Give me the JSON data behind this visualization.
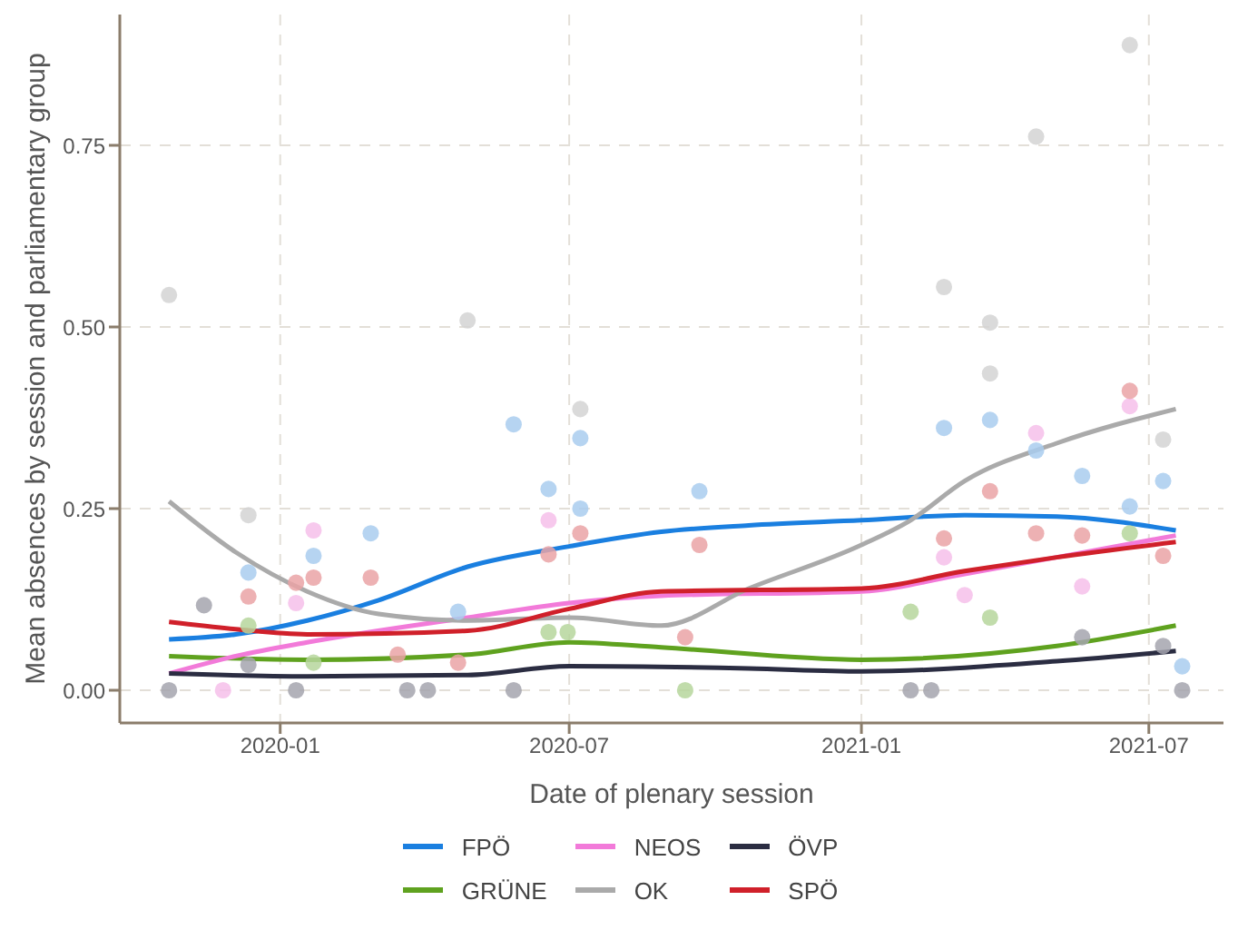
{
  "chart_data": {
    "type": "line",
    "xlabel": "Date of plenary session",
    "ylabel": "Mean absences by session and parliamentary group",
    "xlim": [
      "2019-09-22",
      "2021-08-17"
    ],
    "xticks": [
      "2020-01",
      "2020-07",
      "2021-01",
      "2021-07"
    ],
    "ylim": [
      -0.045,
      0.93
    ],
    "yticks": [
      {
        "value": 0,
        "label": "0.00"
      },
      {
        "value": 0.25,
        "label": "0.25"
      },
      {
        "value": 0.5,
        "label": "0.50"
      },
      {
        "value": 0.75,
        "label": "0.75"
      }
    ],
    "grid": true,
    "legend": "bottom",
    "marker": "none",
    "series": [
      {
        "type": "scatter",
        "marker": "circle",
        "color": "#a9cdef",
        "x": [
          "2019-12-12",
          "2020-01-22",
          "2020-02-27",
          "2020-04-22",
          "2020-05-27",
          "2020-06-18",
          "2020-07-08",
          "2020-07-08",
          "2020-09-21",
          "2021-02-22",
          "2021-03-23",
          "2021-04-21",
          "2021-05-20",
          "2021-06-19",
          "2021-07-10",
          "2021-07-22"
        ],
        "values": [
          0.162,
          0.185,
          0.216,
          0.108,
          0.366,
          0.277,
          0.347,
          0.25,
          0.274,
          0.361,
          0.372,
          0.33,
          0.295,
          0.253,
          0.288,
          0.033
        ]
      },
      {
        "type": "scatter",
        "marker": "circle",
        "color": "#b6d69c",
        "x": [
          "2019-12-12",
          "2020-01-22",
          "2020-06-18",
          "2020-06-30",
          "2020-09-12",
          "2021-02-01",
          "2021-03-23",
          "2021-06-19"
        ],
        "values": [
          0.089,
          0.038,
          0.08,
          0.08,
          0.0,
          0.108,
          0.1,
          0.216
        ]
      },
      {
        "type": "scatter",
        "marker": "circle",
        "color": "#f6c0ea",
        "x": [
          "2019-11-26",
          "2020-01-11",
          "2020-01-22",
          "2020-06-18",
          "2021-02-22",
          "2021-03-07",
          "2021-04-21",
          "2021-05-20",
          "2021-06-19"
        ],
        "values": [
          0.0,
          0.12,
          0.22,
          0.234,
          0.183,
          0.131,
          0.354,
          0.143,
          0.391
        ]
      },
      {
        "type": "scatter",
        "marker": "circle",
        "color": "#d3d3d3",
        "x": [
          "2019-10-23",
          "2019-12-12",
          "2020-04-28",
          "2020-07-08",
          "2021-02-22",
          "2021-03-23",
          "2021-03-23",
          "2021-04-21",
          "2021-06-19",
          "2021-07-10"
        ],
        "values": [
          0.544,
          0.241,
          0.509,
          0.387,
          0.555,
          0.506,
          0.436,
          0.762,
          0.888,
          0.345
        ]
      },
      {
        "type": "scatter",
        "marker": "circle",
        "color": "#a4a4ae",
        "x": [
          "2019-10-23",
          "2019-11-14",
          "2019-12-12",
          "2020-01-11",
          "2020-03-21",
          "2020-04-03",
          "2020-05-27",
          "2021-02-01",
          "2021-02-14",
          "2021-05-20",
          "2021-07-10",
          "2021-07-22"
        ],
        "values": [
          0.0,
          0.117,
          0.035,
          0.0,
          0.0,
          0.0,
          0.0,
          0.0,
          0.0,
          0.073,
          0.061,
          0.0
        ]
      },
      {
        "type": "scatter",
        "marker": "circle",
        "color": "#eaa3a6",
        "x": [
          "2019-12-12",
          "2020-01-11",
          "2020-01-22",
          "2020-02-27",
          "2020-03-15",
          "2020-04-22",
          "2020-06-18",
          "2020-07-08",
          "2020-09-12",
          "2020-09-21",
          "2021-02-22",
          "2021-03-23",
          "2021-04-21",
          "2021-05-20",
          "2021-06-19",
          "2021-07-10"
        ],
        "values": [
          0.129,
          0.148,
          0.155,
          0.155,
          0.049,
          0.038,
          0.187,
          0.216,
          0.073,
          0.2,
          0.209,
          0.274,
          0.216,
          0.213,
          0.412,
          0.185
        ]
      },
      {
        "name": "FPÖ",
        "color": "#1a7fe0",
        "x": [
          "2019-10-23",
          "2019-12-04",
          "2020-01-18",
          "2020-03-03",
          "2020-04-28",
          "2020-07-01",
          "2020-08-28",
          "2020-10-22",
          "2021-01-01",
          "2021-03-07",
          "2021-05-04",
          "2021-07-18"
        ],
        "values": [
          0.07,
          0.077,
          0.096,
          0.124,
          0.17,
          0.198,
          0.218,
          0.227,
          0.234,
          0.241,
          0.239,
          0.22
        ]
      },
      {
        "name": "GRÜNE",
        "color": "#5fa21f",
        "x": [
          "2019-10-23",
          "2020-01-18",
          "2020-04-28",
          "2020-07-01",
          "2020-08-28",
          "2021-01-01",
          "2021-05-04",
          "2021-07-18"
        ],
        "values": [
          0.047,
          0.042,
          0.049,
          0.066,
          0.059,
          0.042,
          0.061,
          0.089
        ]
      },
      {
        "name": "NEOS",
        "color": "#f27ad9",
        "x": [
          "2019-10-23",
          "2019-12-04",
          "2020-01-18",
          "2020-04-28",
          "2020-07-01",
          "2020-08-28",
          "2021-01-01",
          "2021-03-07",
          "2021-05-04",
          "2021-07-18"
        ],
        "values": [
          0.023,
          0.047,
          0.066,
          0.1,
          0.12,
          0.13,
          0.136,
          0.16,
          0.183,
          0.213
        ]
      },
      {
        "name": "OK",
        "color": "#aaaaaa",
        "x": [
          "2019-10-23",
          "2019-12-04",
          "2020-01-18",
          "2020-03-03",
          "2020-04-28",
          "2020-07-01",
          "2020-08-28",
          "2020-10-22",
          "2021-01-01",
          "2021-02-01",
          "2021-03-07",
          "2021-05-04",
          "2021-07-18"
        ],
        "values": [
          0.26,
          0.19,
          0.136,
          0.105,
          0.096,
          0.1,
          0.089,
          0.14,
          0.2,
          0.234,
          0.288,
          0.34,
          0.387
        ]
      },
      {
        "name": "ÖVP",
        "color": "#2b2d42",
        "x": [
          "2019-10-23",
          "2020-01-18",
          "2020-04-28",
          "2020-07-01",
          "2020-10-22",
          "2021-01-01",
          "2021-05-04",
          "2021-07-18"
        ],
        "values": [
          0.023,
          0.019,
          0.021,
          0.033,
          0.03,
          0.026,
          0.04,
          0.054
        ]
      },
      {
        "name": "SPÖ",
        "color": "#d0202a",
        "x": [
          "2019-10-23",
          "2019-12-04",
          "2020-01-18",
          "2020-04-28",
          "2020-07-01",
          "2020-08-28",
          "2021-01-01",
          "2021-03-07",
          "2021-05-04",
          "2021-07-18"
        ],
        "values": [
          0.094,
          0.084,
          0.077,
          0.082,
          0.112,
          0.136,
          0.14,
          0.164,
          0.183,
          0.204
        ]
      }
    ]
  }
}
